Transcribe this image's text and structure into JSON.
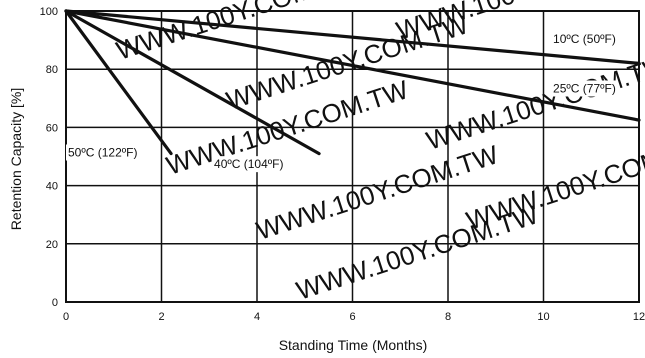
{
  "chart_data": {
    "type": "line",
    "title": "",
    "xlabel": "Standing Time (Months)",
    "ylabel": "Retention Capacity [%]",
    "xlim": [
      0,
      12
    ],
    "ylim": [
      0,
      100
    ],
    "x_ticks": [
      0,
      2,
      4,
      6,
      8,
      10,
      12
    ],
    "x_tick_labels": [
      "0",
      "2",
      "4",
      "6",
      "8",
      "10",
      "12"
    ],
    "y_ticks": [
      0,
      20,
      40,
      60,
      80,
      100
    ],
    "y_tick_labels": [
      "0",
      "20",
      "40",
      "60",
      "80",
      "100"
    ],
    "grid": true,
    "legend": "none",
    "series": [
      {
        "name": "10ºC (50ºF)",
        "x": [
          0,
          12
        ],
        "y": [
          100,
          82
        ],
        "label_anchor": [
          10.2,
          89
        ]
      },
      {
        "name": "25ºC (77ºF)",
        "x": [
          0,
          12
        ],
        "y": [
          100,
          62.5
        ],
        "label_anchor": [
          10.2,
          72
        ]
      },
      {
        "name": "40ºC (104ºF)",
        "x": [
          0,
          5.3
        ],
        "y": [
          100,
          51
        ],
        "label_anchor": [
          3.1,
          46
        ]
      },
      {
        "name": "50ºC (122ºF)",
        "x": [
          0,
          2.2
        ],
        "y": [
          100,
          51
        ],
        "label_anchor": [
          0.0,
          50
        ]
      }
    ],
    "watermark": "WWW.100Y.COM.TW",
    "colors": {
      "line": "#111111",
      "grid": "#111111",
      "background": "#ffffff",
      "watermark": "#d8d8d8"
    }
  }
}
